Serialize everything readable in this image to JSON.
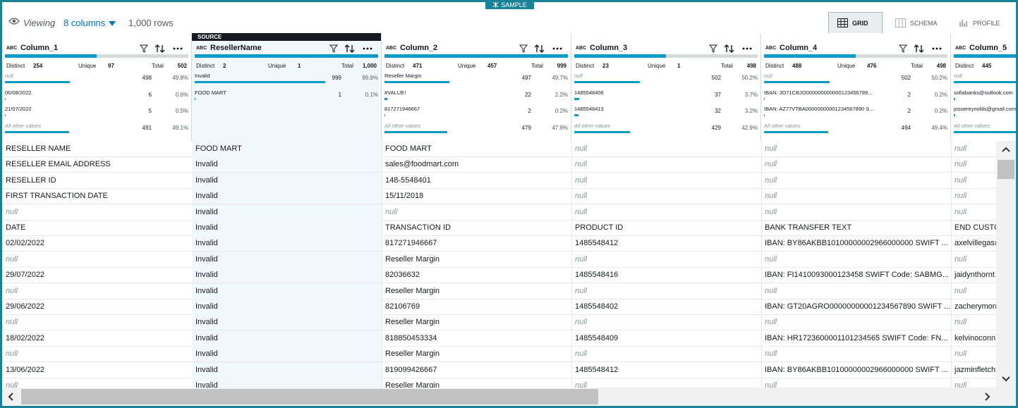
{
  "toolbar": {
    "sample": "SAMPLE",
    "viewing": "Viewing",
    "columns": "8 columns",
    "rows": "1,000 rows",
    "views": [
      "GRID",
      "SCHEMA",
      "PROFILE"
    ]
  },
  "source_label": "SOURCE",
  "stat_labels": {
    "distinct": "Distinct",
    "unique": "Unique",
    "total": "Total"
  },
  "columns": [
    {
      "type": "ABC",
      "name": "Column_1",
      "distinct": "254",
      "unique": "97",
      "total": "502",
      "top_values": [
        {
          "label": "null",
          "count": "498",
          "percent": "49.8%"
        },
        {
          "label": "06/08/2022",
          "count": "6",
          "percent": "0.6%"
        },
        {
          "label": "21/07/2022",
          "count": "5",
          "percent": "0.5%"
        },
        {
          "label": "All other values",
          "count": "491",
          "percent": "49.1%"
        }
      ]
    },
    {
      "type": "ABC",
      "name": "ResellerName",
      "source": true,
      "distinct": "2",
      "unique": "1",
      "total": "1,000",
      "top_values": [
        {
          "label": "Invalid",
          "count": "999",
          "percent": "99.9%"
        },
        {
          "label": "FOOD MART",
          "count": "1",
          "percent": "0.1%"
        }
      ]
    },
    {
      "type": "ABC",
      "name": "Column_2",
      "distinct": "471",
      "unique": "457",
      "total": "999",
      "top_values": [
        {
          "label": "Reseller Margin",
          "count": "497",
          "percent": "49.7%"
        },
        {
          "label": "#VALUE!",
          "count": "22",
          "percent": "2.2%"
        },
        {
          "label": "817271946667",
          "count": "2",
          "percent": "0.2%"
        },
        {
          "label": "All other values",
          "count": "479",
          "percent": "47.9%"
        }
      ]
    },
    {
      "type": "ABC",
      "name": "Column_3",
      "distinct": "23",
      "unique": "1",
      "total": "498",
      "top_values": [
        {
          "label": "null",
          "count": "502",
          "percent": "50.2%"
        },
        {
          "label": "1485548406",
          "count": "37",
          "percent": "3.7%"
        },
        {
          "label": "1485548413",
          "count": "32",
          "percent": "3.2%"
        },
        {
          "label": "All other values",
          "count": "429",
          "percent": "42.9%"
        }
      ]
    },
    {
      "type": "ABC",
      "name": "Column_4",
      "distinct": "488",
      "unique": "476",
      "total": "498",
      "top_values": [
        {
          "label": "null",
          "count": "502",
          "percent": "50.2%"
        },
        {
          "label": "IBAN: JO71CBJO000000000000123456789...",
          "count": "2",
          "percent": "0.2%"
        },
        {
          "label": "IBAN: AZ77VTBA00000000001234567890 S...",
          "count": "2",
          "percent": "0.2%"
        },
        {
          "label": "All other values",
          "count": "494",
          "percent": "49.4%"
        }
      ]
    },
    {
      "type": "ABC",
      "name": "Column_5",
      "distinct": "445",
      "top_values": [
        {
          "label": "null"
        },
        {
          "label": "sofiabanks@outlook.com"
        },
        {
          "label": "josuereynolds@gmail.com"
        },
        {
          "label": "All other values"
        }
      ]
    }
  ],
  "rows": [
    [
      "RESELLER NAME",
      "FOOD MART",
      "FOOD MART",
      "null",
      "null",
      "null"
    ],
    [
      "RESELLER EMAIL ADDRESS",
      "Invalid",
      "sales@foodmart.com",
      "null",
      "null",
      "null"
    ],
    [
      "RESELLER ID",
      "Invalid",
      "148-5548401",
      "null",
      "null",
      "null"
    ],
    [
      "FIRST TRANSACTION DATE",
      "Invalid",
      "15/11/2018",
      "null",
      "null",
      "null"
    ],
    [
      "null",
      "Invalid",
      "null",
      "null",
      "null",
      "null"
    ],
    [
      "DATE",
      "Invalid",
      "TRANSACTION ID",
      "PRODUCT ID",
      "BANK TRANSFER TEXT",
      "END CUSTOM"
    ],
    [
      "02/02/2022",
      "Invalid",
      "817271946667",
      "1485548412",
      "IBAN: BY86AKBB10100000002966000000 SWIFT ...",
      "axelvillegas@"
    ],
    [
      "null",
      "Invalid",
      "Reseller Margin",
      "null",
      "null",
      "null"
    ],
    [
      "29/07/2022",
      "Invalid",
      "82036632",
      "1485548416",
      "IBAN: FI1410093000123458 SWIFT Code: SABMG...",
      "jaidynthornt"
    ],
    [
      "null",
      "Invalid",
      "Reseller Margin",
      "null",
      "null",
      "null"
    ],
    [
      "29/06/2022",
      "Invalid",
      "82106769",
      "1485548402",
      "IBAN: GT20AGRO00000000001234567890 SWIFT ...",
      "zacherymorr"
    ],
    [
      "null",
      "Invalid",
      "Reseller Margin",
      "null",
      "null",
      "null"
    ],
    [
      "18/02/2022",
      "Invalid",
      "818850453334",
      "1485548409",
      "IBAN: HR1723600001101234565 SWIFT Code: FN...",
      "kelvinoconn"
    ],
    [
      "null",
      "Invalid",
      "Reseller Margin",
      "null",
      "null",
      "null"
    ],
    [
      "13/06/2022",
      "Invalid",
      "819099426667",
      "1485548412",
      "IBAN: BY86AKBB10100000002966000000 SWIFT ...",
      "jazminfletch"
    ],
    [
      "null",
      "Invalid",
      "Reseller Margin",
      "null",
      "null",
      "null"
    ]
  ]
}
